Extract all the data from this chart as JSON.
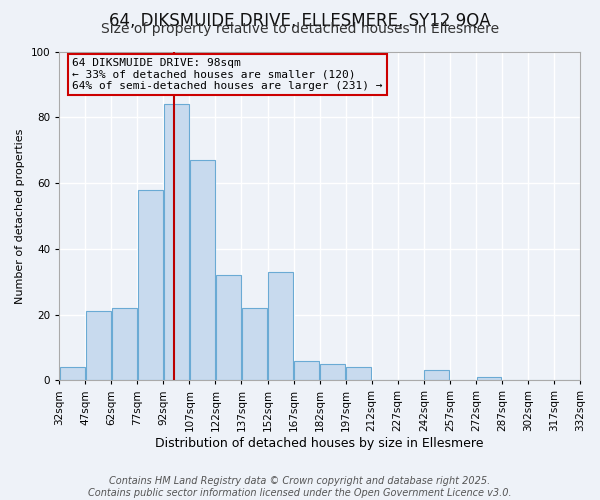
{
  "title": "64, DIKSMUIDE DRIVE, ELLESMERE, SY12 9QA",
  "subtitle": "Size of property relative to detached houses in Ellesmere",
  "xlabel": "Distribution of detached houses by size in Ellesmere",
  "ylabel": "Number of detached properties",
  "footer_lines": [
    "Contains HM Land Registry data © Crown copyright and database right 2025.",
    "Contains public sector information licensed under the Open Government Licence v3.0."
  ],
  "bin_edges": [
    32,
    47,
    62,
    77,
    92,
    107,
    122,
    137,
    152,
    167,
    182,
    197,
    212,
    227,
    242,
    257,
    272,
    287,
    302,
    317,
    332
  ],
  "bar_heights": [
    4,
    21,
    22,
    58,
    84,
    67,
    32,
    22,
    33,
    6,
    5,
    4,
    0,
    0,
    3,
    0,
    1,
    0,
    0,
    0
  ],
  "bar_color": "#c8daee",
  "bar_edgecolor": "#6aaad4",
  "property_line_x": 98,
  "property_line_color": "#bb0000",
  "annotation_text": "64 DIKSMUIDE DRIVE: 98sqm\n← 33% of detached houses are smaller (120)\n64% of semi-detached houses are larger (231) →",
  "annotation_box_edgecolor": "#cc0000",
  "ylim": [
    0,
    100
  ],
  "yticks": [
    0,
    20,
    40,
    60,
    80,
    100
  ],
  "bg_color": "#eef2f8",
  "grid_color": "#ffffff",
  "title_fontsize": 12,
  "subtitle_fontsize": 10,
  "xlabel_fontsize": 9,
  "ylabel_fontsize": 8,
  "tick_fontsize": 7.5,
  "footer_fontsize": 7,
  "annot_fontsize": 8
}
